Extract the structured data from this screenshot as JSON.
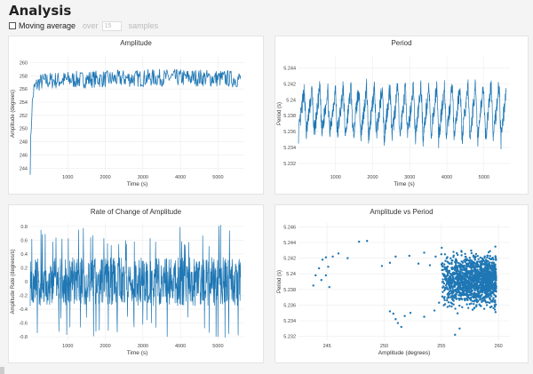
{
  "page": {
    "title": "Analysis"
  },
  "controls": {
    "moving_average_label": "Moving average",
    "moving_average_checked": false,
    "over_label": "over",
    "samples_value": "15",
    "samples_label": "samples"
  },
  "colors": {
    "series": "#1f77b4",
    "grid": "#ececec",
    "axis": "#888888"
  },
  "chart_data": [
    {
      "type": "line",
      "title": "Amplitude",
      "xlabel": "Time (s)",
      "ylabel": "Amplitude (degrees)",
      "xlim": [
        0,
        5700
      ],
      "ylim": [
        243.5,
        261
      ],
      "xticks": [
        1000,
        2000,
        3000,
        4000,
        5000
      ],
      "yticks": [
        244,
        246,
        248,
        250,
        252,
        254,
        256,
        258,
        260
      ],
      "x": [
        0,
        20,
        40,
        60,
        80,
        100,
        130,
        160,
        200,
        250,
        300,
        400,
        500,
        600,
        800,
        1000,
        1200,
        1400,
        1600,
        1800,
        2000,
        2200,
        2400,
        2600,
        2800,
        3000,
        3200,
        3400,
        3600,
        3800,
        4000,
        4200,
        4400,
        4600,
        4800,
        5000,
        5200,
        5400,
        5600
      ],
      "y": [
        244.5,
        249,
        252.5,
        254,
        255.2,
        255.8,
        256.2,
        256.5,
        256.8,
        257.0,
        257.1,
        257.2,
        257.2,
        257.3,
        257.3,
        257.4,
        257.4,
        257.4,
        257.5,
        257.5,
        257.5,
        257.5,
        257.6,
        257.6,
        257.6,
        257.6,
        257.7,
        257.7,
        257.7,
        257.7,
        257.7,
        257.7,
        257.7,
        257.7,
        257.6,
        257.6,
        257.6,
        257.5,
        257.5
      ],
      "noise": 1.3
    },
    {
      "type": "line",
      "title": "Period",
      "xlabel": "Time (s)",
      "ylabel": "Period (s)",
      "xlim": [
        0,
        5700
      ],
      "ylim": [
        5.231,
        5.2455
      ],
      "xticks": [
        1000,
        2000,
        3000,
        4000,
        5000
      ],
      "yticks": [
        5.232,
        5.234,
        5.236,
        5.238,
        5.24,
        5.242,
        5.244
      ],
      "oscillation": {
        "center": 5.2385,
        "amplitude": 0.0035,
        "period_s": 210
      },
      "noise": 0.0012
    },
    {
      "type": "line",
      "title": "Rate of Change of Amplitude",
      "xlabel": "Time (s)",
      "ylabel": "Amplitude Rate (degrees/s)",
      "xlim": [
        0,
        5700
      ],
      "ylim": [
        -0.85,
        0.85
      ],
      "xticks": [
        1000,
        2000,
        3000,
        4000,
        5000
      ],
      "yticks": [
        -0.8,
        -0.6,
        -0.4,
        -0.2,
        0,
        0.2,
        0.4,
        0.6,
        0.8
      ],
      "spread": 0.35
    },
    {
      "type": "scatter",
      "title": "Amplitude vs Period",
      "xlabel": "Amplitude (degrees)",
      "ylabel": "Period (s)",
      "xlim": [
        242.5,
        261
      ],
      "ylim": [
        5.2315,
        5.2465
      ],
      "xticks": [
        245,
        250,
        255,
        260
      ],
      "yticks": [
        5.232,
        5.234,
        5.236,
        5.238,
        5.24,
        5.242,
        5.244,
        5.246
      ],
      "points": [
        [
          243.8,
          5.2385
        ],
        [
          244.0,
          5.2398
        ],
        [
          244.3,
          5.2407
        ],
        [
          244.6,
          5.2418
        ],
        [
          244.9,
          5.2421
        ],
        [
          245.1,
          5.2409
        ],
        [
          244.5,
          5.2392
        ],
        [
          244.9,
          5.2398
        ],
        [
          245.2,
          5.2383
        ],
        [
          245.5,
          5.2422
        ],
        [
          246.0,
          5.2426
        ],
        [
          246.8,
          5.242
        ],
        [
          247.8,
          5.2441
        ],
        [
          248.5,
          5.2442
        ],
        [
          249.8,
          5.241
        ],
        [
          250.5,
          5.2414
        ],
        [
          251.0,
          5.2422
        ],
        [
          252.2,
          5.2423
        ],
        [
          253.0,
          5.2413
        ],
        [
          253.5,
          5.2427
        ],
        [
          254.0,
          5.2411
        ],
        [
          254.5,
          5.2422
        ],
        [
          255.0,
          5.2425
        ],
        [
          250.5,
          5.2352
        ],
        [
          250.8,
          5.2349
        ],
        [
          251.0,
          5.2342
        ],
        [
          251.2,
          5.2337
        ],
        [
          251.5,
          5.2332
        ],
        [
          251.8,
          5.2346
        ],
        [
          252.3,
          5.235
        ],
        [
          253.5,
          5.2345
        ],
        [
          254.4,
          5.2353
        ],
        [
          254.8,
          5.2363
        ],
        [
          255.5,
          5.2366
        ],
        [
          256.2,
          5.2322
        ],
        [
          256.6,
          5.233
        ]
      ],
      "cluster": {
        "amp_min": 255,
        "amp_max": 259.8,
        "per_center": 5.2392,
        "per_spread": 0.0028,
        "count": 1500
      }
    }
  ]
}
